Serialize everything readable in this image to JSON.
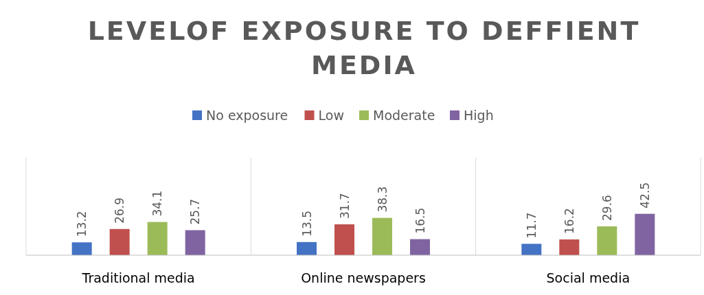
{
  "chart_data": {
    "type": "bar",
    "title": "LEVELOF EXPOSURE TO DEFFIENT MEDIA",
    "categories": [
      "Traditional media",
      "Online newspapers",
      "Social media"
    ],
    "series": [
      {
        "name": "No exposure",
        "color": "#4472c4",
        "values": [
          13.2,
          13.5,
          11.7
        ]
      },
      {
        "name": "Low",
        "color": "#c0504d",
        "values": [
          26.9,
          31.7,
          16.2
        ]
      },
      {
        "name": "Moderate",
        "color": "#9bbb59",
        "values": [
          34.1,
          38.3,
          29.6
        ]
      },
      {
        "name": "High",
        "color": "#8064a2",
        "values": [
          25.7,
          16.5,
          42.5
        ]
      }
    ],
    "ylim": [
      0,
      100
    ],
    "tick_labels": "x",
    "grid": "x",
    "legend": "top",
    "data_labels": true
  }
}
